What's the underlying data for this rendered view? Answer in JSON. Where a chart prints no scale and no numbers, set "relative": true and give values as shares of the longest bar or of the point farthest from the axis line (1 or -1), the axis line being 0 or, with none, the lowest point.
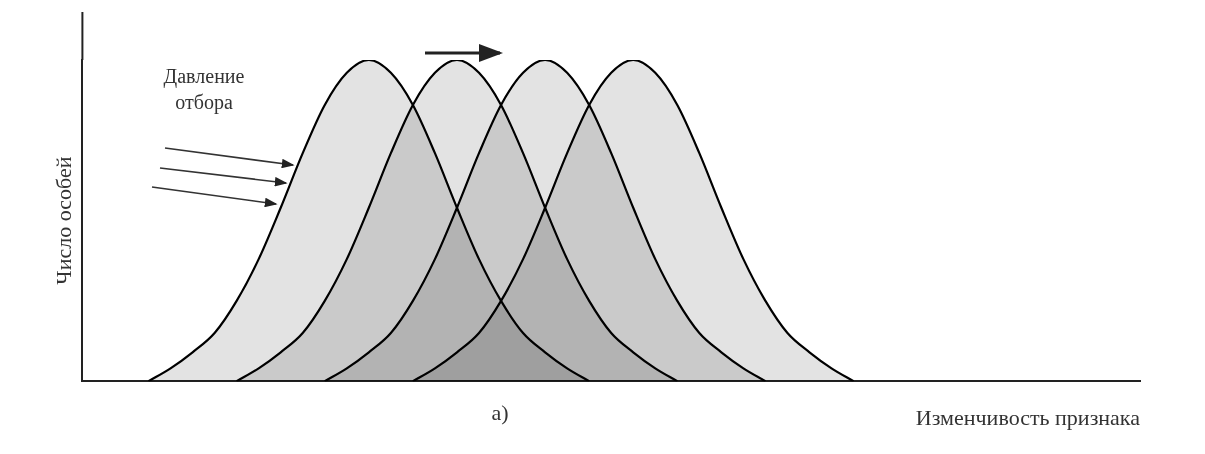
{
  "chart_data": {
    "type": "area",
    "relative": true,
    "xlabel": "Изменчивость признака",
    "ylabel": "Число особей",
    "legend": false,
    "grid": false,
    "annotations": [
      "Давление отбора",
      "а)"
    ],
    "categories": [
      null,
      null,
      null,
      null,
      null,
      null,
      null,
      null,
      null,
      null,
      null,
      null,
      null,
      null,
      null,
      null,
      null,
      null,
      null,
      null,
      null,
      null,
      null,
      null,
      null,
      null,
      null,
      null,
      null,
      null,
      null,
      null,
      null,
      null,
      null,
      null,
      null,
      null,
      null,
      null,
      null,
      null,
      null,
      null,
      null,
      null,
      null,
      null,
      null
    ],
    "series": [
      {
        "color": "#000000",
        "values": [
          null,
          null,
          null,
          0,
          0.04,
          0.09,
          0.15,
          0.25,
          0.38,
          0.54,
          0.71,
          0.86,
          0.96,
          1,
          0.96,
          0.86,
          0.71,
          0.54,
          0.38,
          0.25,
          0.15,
          0.09,
          0.04,
          0,
          null,
          null,
          null,
          null,
          null,
          null,
          null,
          null,
          null,
          null,
          null,
          null,
          null,
          null,
          null,
          null,
          null,
          null,
          null,
          null,
          null,
          null,
          null,
          null,
          null
        ]
      },
      {
        "color": "#000000",
        "values": [
          null,
          null,
          null,
          null,
          null,
          null,
          null,
          0,
          0.04,
          0.09,
          0.15,
          0.25,
          0.38,
          0.54,
          0.71,
          0.86,
          0.96,
          1,
          0.96,
          0.86,
          0.71,
          0.54,
          0.38,
          0.25,
          0.15,
          0.09,
          0.04,
          0,
          null,
          null,
          null,
          null,
          null,
          null,
          null,
          null,
          null,
          null,
          null,
          null,
          null,
          null,
          null,
          null,
          null,
          null,
          null,
          null,
          null
        ]
      },
      {
        "color": "#000000",
        "values": [
          null,
          null,
          null,
          null,
          null,
          null,
          null,
          null,
          null,
          null,
          null,
          0,
          0.04,
          0.09,
          0.15,
          0.25,
          0.38,
          0.54,
          0.71,
          0.86,
          0.96,
          1,
          0.96,
          0.86,
          0.71,
          0.54,
          0.38,
          0.25,
          0.15,
          0.09,
          0.04,
          0,
          null,
          null,
          null,
          null,
          null,
          null,
          null,
          null,
          null,
          null,
          null,
          null,
          null,
          null,
          null,
          null,
          null
        ]
      },
      {
        "color": "#000000",
        "values": [
          null,
          null,
          null,
          null,
          null,
          null,
          null,
          null,
          null,
          null,
          null,
          null,
          null,
          null,
          null,
          0,
          0.04,
          0.09,
          0.15,
          0.25,
          0.38,
          0.54,
          0.71,
          0.86,
          0.96,
          1,
          0.96,
          0.86,
          0.71,
          0.54,
          0.38,
          0.25,
          0.15,
          0.09,
          0.04,
          0,
          null,
          null,
          null,
          null,
          null,
          null,
          null,
          null,
          null,
          null,
          null,
          null,
          null
        ]
      }
    ]
  }
}
